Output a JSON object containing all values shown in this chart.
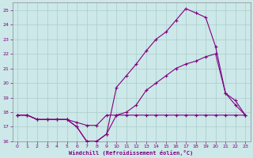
{
  "xlabel": "Windchill (Refroidissement éolien,°C)",
  "background_color": "#cce8e8",
  "grid_color": "#aacccc",
  "line_color": "#800080",
  "xlim": [
    -0.5,
    23.5
  ],
  "ylim": [
    16,
    25.5
  ],
  "yticks": [
    16,
    17,
    18,
    19,
    20,
    21,
    22,
    23,
    24,
    25
  ],
  "xticks": [
    0,
    1,
    2,
    3,
    4,
    5,
    6,
    7,
    8,
    9,
    10,
    11,
    12,
    13,
    14,
    15,
    16,
    17,
    18,
    19,
    20,
    21,
    22,
    23
  ],
  "series": [
    {
      "x": [
        0,
        1,
        2,
        3,
        4,
        5,
        6,
        7,
        8,
        9,
        10,
        11,
        12,
        13,
        14,
        15,
        16,
        17,
        18,
        19,
        20,
        21,
        22,
        23
      ],
      "y": [
        17.8,
        17.8,
        17.5,
        17.5,
        17.5,
        17.5,
        17.3,
        17.1,
        17.1,
        17.8,
        17.8,
        17.8,
        17.8,
        17.8,
        17.8,
        17.8,
        17.8,
        17.8,
        17.8,
        17.8,
        17.8,
        17.8,
        17.8,
        17.8
      ]
    },
    {
      "x": [
        0,
        1,
        2,
        3,
        4,
        5,
        6,
        7,
        8,
        9,
        10,
        11,
        12,
        13,
        14,
        15,
        16,
        17,
        18,
        19,
        20,
        21,
        22,
        23
      ],
      "y": [
        17.8,
        17.8,
        17.5,
        17.5,
        17.5,
        17.5,
        17.0,
        16.0,
        16.0,
        16.5,
        17.8,
        18.0,
        18.5,
        19.5,
        20.0,
        20.5,
        21.0,
        21.3,
        21.5,
        21.8,
        22.0,
        19.3,
        18.8,
        17.8
      ]
    },
    {
      "x": [
        0,
        1,
        2,
        3,
        4,
        5,
        6,
        7,
        8,
        9,
        10,
        11,
        12,
        13,
        14,
        15,
        16,
        17,
        18,
        19,
        20,
        21,
        22,
        23
      ],
      "y": [
        17.8,
        17.8,
        17.5,
        17.5,
        17.5,
        17.5,
        17.0,
        16.0,
        16.0,
        16.5,
        19.7,
        20.5,
        21.3,
        22.2,
        23.0,
        23.5,
        24.3,
        25.1,
        24.8,
        24.5,
        22.5,
        19.3,
        18.5,
        17.8
      ]
    }
  ]
}
